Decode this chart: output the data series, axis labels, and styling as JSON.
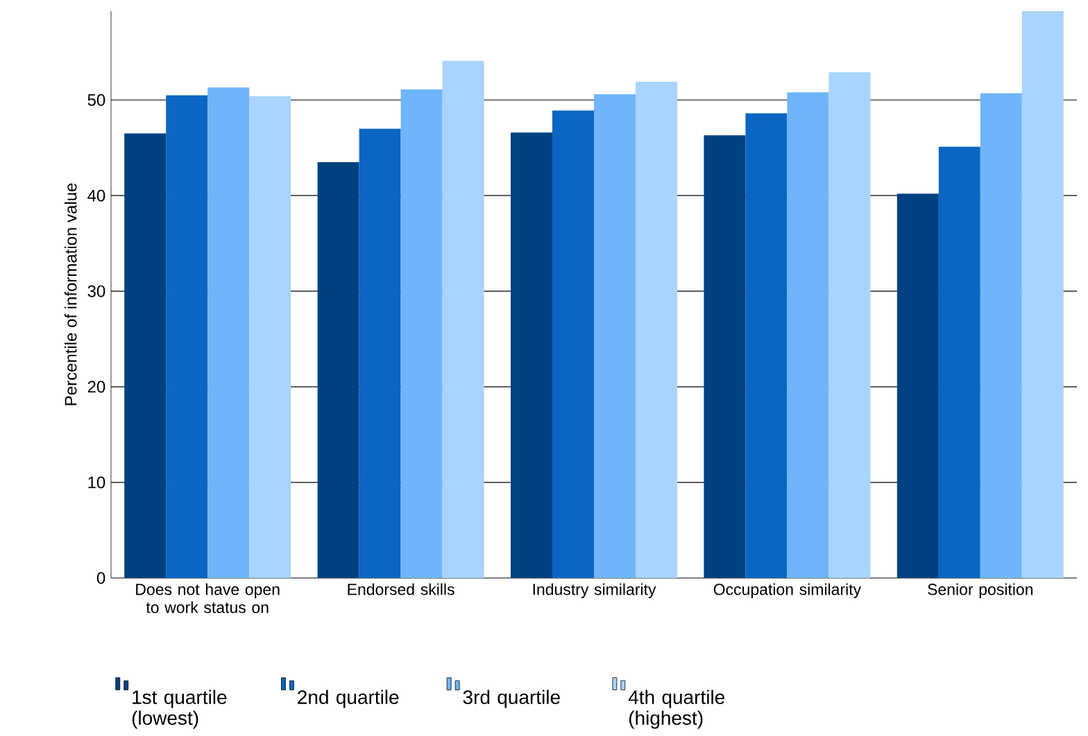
{
  "chart_data": {
    "type": "bar",
    "ylabel": "Percentile of information value",
    "categories": [
      "Does not have open to work status on",
      "Endorsed skills",
      "Industry similarity",
      "Occupation similarity",
      "Senior position"
    ],
    "series": [
      {
        "name": "1st quartile (lowest)",
        "color": "#004182",
        "values": [
          46.5,
          43.5,
          46.6,
          46.3,
          40.2
        ]
      },
      {
        "name": "2nd quartile",
        "color": "#0a66c2",
        "values": [
          50.5,
          47.0,
          48.9,
          48.6,
          45.1
        ]
      },
      {
        "name": "3rd quartile",
        "color": "#70b5f9",
        "values": [
          51.3,
          51.1,
          50.6,
          50.8,
          50.7
        ]
      },
      {
        "name": "4th quartile (highest)",
        "color": "#a8d4ff",
        "values": [
          50.4,
          54.1,
          51.9,
          52.9,
          59.3
        ]
      }
    ],
    "ylim": [
      0,
      59.3
    ],
    "yticks": [
      0,
      10,
      20,
      30,
      40,
      50
    ],
    "grid": "y",
    "legend": "bottom"
  }
}
